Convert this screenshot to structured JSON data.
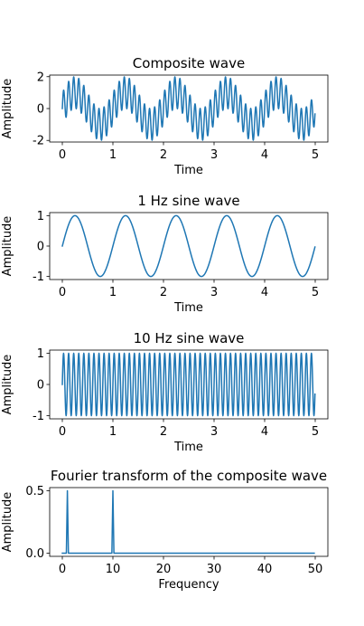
{
  "figure": {
    "line_color": "#1f77b4"
  },
  "chart_data": [
    {
      "type": "line",
      "title": "Composite wave",
      "xlabel": "Time",
      "ylabel": "Amplitude",
      "xlim": [
        -0.25,
        5.25
      ],
      "ylim": [
        -2.1,
        2.1
      ],
      "xticks": [
        0,
        1,
        2,
        3,
        4,
        5
      ],
      "yticks": [
        -2,
        0,
        2
      ],
      "grid": false,
      "series": [
        {
          "x_range": [
            0,
            5
          ],
          "samples": 1000,
          "components": [
            {
              "frequency": 1,
              "amplitude": 1
            },
            {
              "frequency": 10,
              "amplitude": 1
            }
          ]
        }
      ]
    },
    {
      "type": "line",
      "title": "1 Hz sine wave",
      "xlabel": "Time",
      "ylabel": "Amplitude",
      "xlim": [
        -0.25,
        5.25
      ],
      "ylim": [
        -1.1,
        1.1
      ],
      "xticks": [
        0,
        1,
        2,
        3,
        4,
        5
      ],
      "yticks": [
        -1,
        0,
        1
      ],
      "grid": false,
      "series": [
        {
          "x_range": [
            0,
            5
          ],
          "samples": 1000,
          "components": [
            {
              "frequency": 1,
              "amplitude": 1
            }
          ]
        }
      ]
    },
    {
      "type": "line",
      "title": "10 Hz sine wave",
      "xlabel": "Time",
      "ylabel": "Amplitude",
      "xlim": [
        -0.25,
        5.25
      ],
      "ylim": [
        -1.1,
        1.1
      ],
      "xticks": [
        0,
        1,
        2,
        3,
        4,
        5
      ],
      "yticks": [
        -1,
        0,
        1
      ],
      "grid": false,
      "series": [
        {
          "x_range": [
            0,
            5
          ],
          "samples": 1000,
          "components": [
            {
              "frequency": 10,
              "amplitude": 1
            }
          ]
        }
      ]
    },
    {
      "type": "line",
      "title": "Fourier transform of the composite wave",
      "xlabel": "Frequency",
      "ylabel": "Amplitude",
      "xlim": [
        -2.5,
        52.5
      ],
      "ylim": [
        -0.025,
        0.525
      ],
      "xticks": [
        0,
        10,
        20,
        30,
        40,
        50
      ],
      "yticks": [
        0.0,
        0.5
      ],
      "ytick_labels": [
        "0.0",
        "0.5"
      ],
      "grid": false,
      "series": [
        {
          "x": [
            0,
            0.8,
            1,
            1.2,
            9.8,
            10,
            10.2,
            49.8
          ],
          "y": [
            0,
            0,
            0.5,
            0,
            0,
            0.5,
            0,
            0
          ]
        }
      ]
    }
  ]
}
